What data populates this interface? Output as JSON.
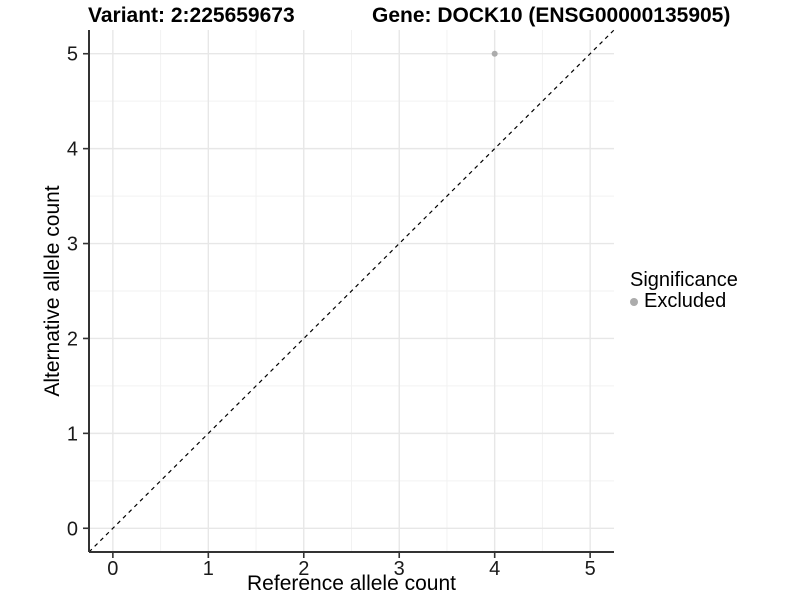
{
  "chart_data": {
    "type": "scatter",
    "title_left": "Variant: 2:225659673",
    "title_right": "Gene: DOCK10 (ENSG00000135905)",
    "xlabel": "Reference allele count",
    "ylabel": "Alternative allele count",
    "xlim": [
      -0.25,
      5.25
    ],
    "ylim": [
      -0.25,
      5.25
    ],
    "xticks": [
      0,
      1,
      2,
      3,
      4,
      5
    ],
    "yticks": [
      0,
      1,
      2,
      3,
      4,
      5
    ],
    "grid": {
      "major": true,
      "minor": true,
      "major_color": "#e7e7e7",
      "minor_color": "#f2f2f2"
    },
    "reference_line": {
      "equation": "y = x",
      "style": "dashed",
      "color": "#000000",
      "from": [
        -0.25,
        -0.25
      ],
      "to": [
        5.25,
        5.25
      ]
    },
    "series": [
      {
        "name": "Excluded",
        "color": "#acacac",
        "point_radius": 3,
        "points": [
          [
            4,
            5
          ]
        ]
      }
    ],
    "legend": {
      "title": "Significance",
      "position": "right",
      "entries": [
        {
          "label": "Excluded",
          "color": "#acacac"
        }
      ]
    }
  },
  "colors": {
    "axis_line": "#333333",
    "tick_mark": "#333333",
    "tick_label": "#1a1a1a",
    "background": "#ffffff"
  }
}
